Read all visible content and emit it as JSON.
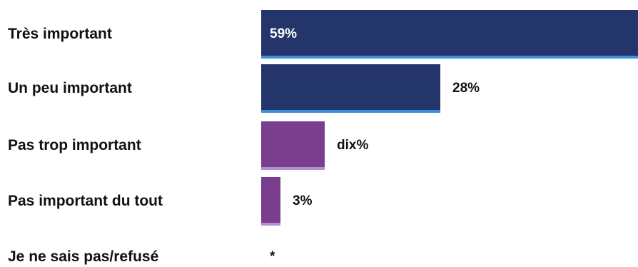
{
  "chart_data": {
    "type": "bar",
    "orientation": "horizontal",
    "categories": [
      "Très important",
      "Un peu important",
      "Pas trop important",
      "Pas important du tout",
      "Je ne sais pas/refusé"
    ],
    "values": [
      59,
      28,
      10,
      3,
      0
    ],
    "value_labels": [
      "59%",
      "28%",
      "dix%",
      "3%",
      "*"
    ],
    "bar_colors": [
      "#23356b",
      "#23356b",
      "#7a3e8f",
      "#7a3e8f",
      "#7a3e8f"
    ],
    "bar_edge_colors": [
      "#3f8fd6",
      "#3f8fd6",
      "#b48fd2",
      "#b48fd2",
      "#b48fd2"
    ],
    "value_label_inside_color": "#ffffff",
    "value_label_outside_color": "#111111",
    "xlim": [
      0,
      59
    ],
    "grid": false,
    "legend": "none"
  }
}
